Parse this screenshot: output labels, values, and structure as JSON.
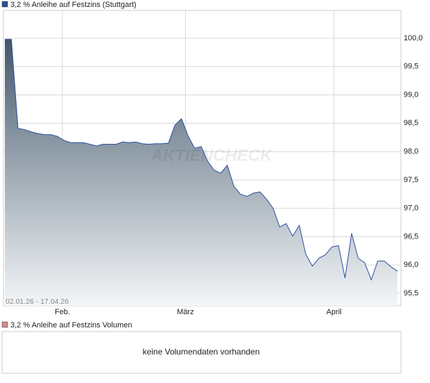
{
  "chart_data": {
    "type": "area",
    "title": "3,2 % Anleihe auf Festzins (Stuttgart)",
    "color": "#2a4d9c",
    "date_range": "02.01.26 - 17.04.26",
    "watermark": "AKTIENCHECK",
    "values": [
      99.98,
      99.98,
      98.41,
      98.39,
      98.35,
      98.32,
      98.3,
      98.3,
      98.27,
      98.2,
      98.16,
      98.16,
      98.16,
      98.13,
      98.1,
      98.13,
      98.13,
      98.13,
      98.17,
      98.16,
      98.17,
      98.14,
      98.13,
      98.14,
      98.14,
      98.15,
      98.47,
      98.58,
      98.28,
      98.06,
      98.09,
      97.83,
      97.67,
      97.62,
      97.76,
      97.39,
      97.25,
      97.21,
      97.27,
      97.29,
      97.16,
      97.0,
      96.67,
      96.73,
      96.51,
      96.7,
      96.19,
      95.98,
      96.12,
      96.18,
      96.32,
      96.34,
      95.77,
      96.56,
      96.12,
      96.04,
      95.74,
      96.07,
      96.07,
      95.97,
      95.89
    ],
    "xlim": [
      0,
      60
    ],
    "xticks": [
      {
        "value": 8.8,
        "label": "Feb."
      },
      {
        "value": 27.6,
        "label": "März"
      },
      {
        "value": 50.3,
        "label": "April"
      }
    ],
    "ylim": [
      95.28,
      100.49
    ],
    "yticks": [
      {
        "value": 95.5,
        "label": "95,5"
      },
      {
        "value": 96,
        "label": "96,0"
      },
      {
        "value": 96.5,
        "label": "96,5"
      },
      {
        "value": 97,
        "label": "97,0"
      },
      {
        "value": 97.5,
        "label": "97,5"
      },
      {
        "value": 98,
        "label": "98,0"
      },
      {
        "value": 98.5,
        "label": "98,5"
      },
      {
        "value": 99,
        "label": "99,0"
      },
      {
        "value": 99.5,
        "label": "99,5"
      },
      {
        "value": 100,
        "label": "100,0"
      }
    ],
    "grid": true,
    "volume": {
      "title": "3,2 % Anleihe auf Festzins Volumen",
      "color": "#d98a8a",
      "message": "keine Volumendaten vorhanden"
    }
  }
}
